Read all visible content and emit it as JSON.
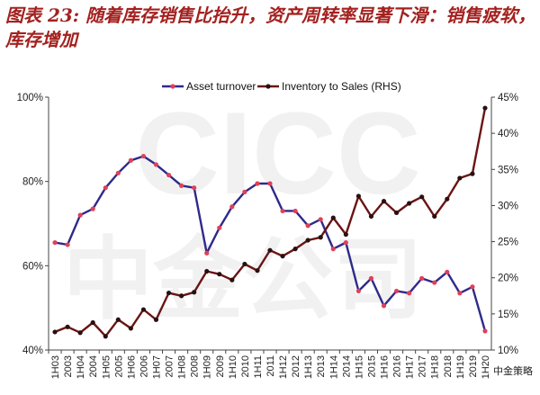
{
  "header": {
    "title": "图表 23: 随着库存销售比抬升，资产周转率显著下滑：销售疲软，库存增加"
  },
  "watermark": {
    "text": "CICC",
    "text2": "中金公司",
    "stamp": "中金策略"
  },
  "colors": {
    "title": "#a3211f",
    "series1": "#2e2a8a",
    "series1_marker": "#e0405a",
    "series2": "#6b1414",
    "series2_marker": "#2a1010"
  },
  "chart_data": {
    "type": "line",
    "categories": [
      "1H03",
      "2003",
      "1H04",
      "2004",
      "1H05",
      "2005",
      "1H06",
      "2006",
      "1H07",
      "2007",
      "1H08",
      "2008",
      "1H09",
      "2009",
      "1H10",
      "2010",
      "1H11",
      "2011",
      "1H12",
      "2012",
      "1H13",
      "2013",
      "1H14",
      "2014",
      "1H15",
      "2015",
      "1H16",
      "2016",
      "1H17",
      "2017",
      "1H18",
      "2018",
      "1H19",
      "2019",
      "1H20"
    ],
    "ylim_left": [
      40,
      100
    ],
    "yticks_left": [
      "40%",
      "60%",
      "80%",
      "100%"
    ],
    "ylim_right": [
      10,
      45
    ],
    "yticks_right": [
      "10%",
      "15%",
      "20%",
      "25%",
      "30%",
      "35%",
      "40%",
      "45%"
    ],
    "legend_position": "top-center",
    "series": [
      {
        "name": "Asset turnover",
        "axis": "left",
        "values": [
          65.5,
          65,
          72,
          73.5,
          78.5,
          82,
          85,
          86,
          84,
          81.5,
          79,
          78.5,
          63,
          69,
          74,
          77.5,
          79.5,
          79.5,
          73,
          73,
          69.5,
          71,
          64,
          65.5,
          54,
          57,
          50.5,
          54,
          53.5,
          57,
          56,
          58.5,
          53.5,
          55,
          44.5
        ]
      },
      {
        "name": "Inventory to Sales (RHS)",
        "axis": "right",
        "values": [
          12.5,
          13.2,
          12.4,
          13.8,
          11.9,
          14.2,
          13,
          15.6,
          14.2,
          17.9,
          17.5,
          18,
          20.9,
          20.5,
          19.7,
          21.9,
          21,
          23.8,
          23,
          24,
          25.2,
          25.6,
          28.3,
          26,
          31.3,
          28.5,
          30.6,
          29,
          30.3,
          31.2,
          28.5,
          30.9,
          33.8,
          34.4,
          43.5
        ]
      }
    ]
  }
}
